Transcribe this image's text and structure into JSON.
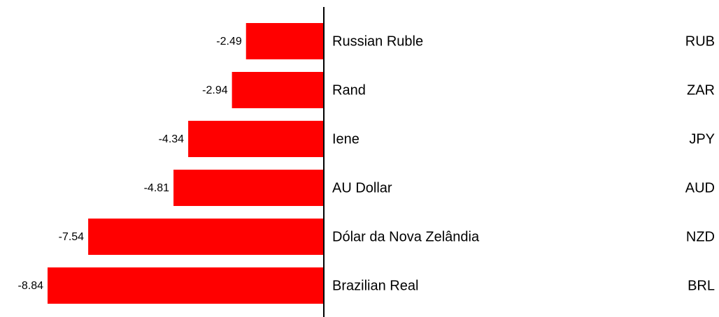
{
  "chart_data": {
    "type": "hbar",
    "categories": [
      "Russian Ruble",
      "Rand",
      "Iene",
      "AU Dollar",
      "Dólar da Nova Zelândia",
      "Brazilian Real"
    ],
    "codes": [
      "RUB",
      "ZAR",
      "JPY",
      "AUD",
      "NZD",
      "BRL"
    ],
    "values": [
      -2.49,
      -2.94,
      -4.34,
      -4.81,
      -7.54,
      -8.84
    ],
    "color": "#ff0000"
  }
}
